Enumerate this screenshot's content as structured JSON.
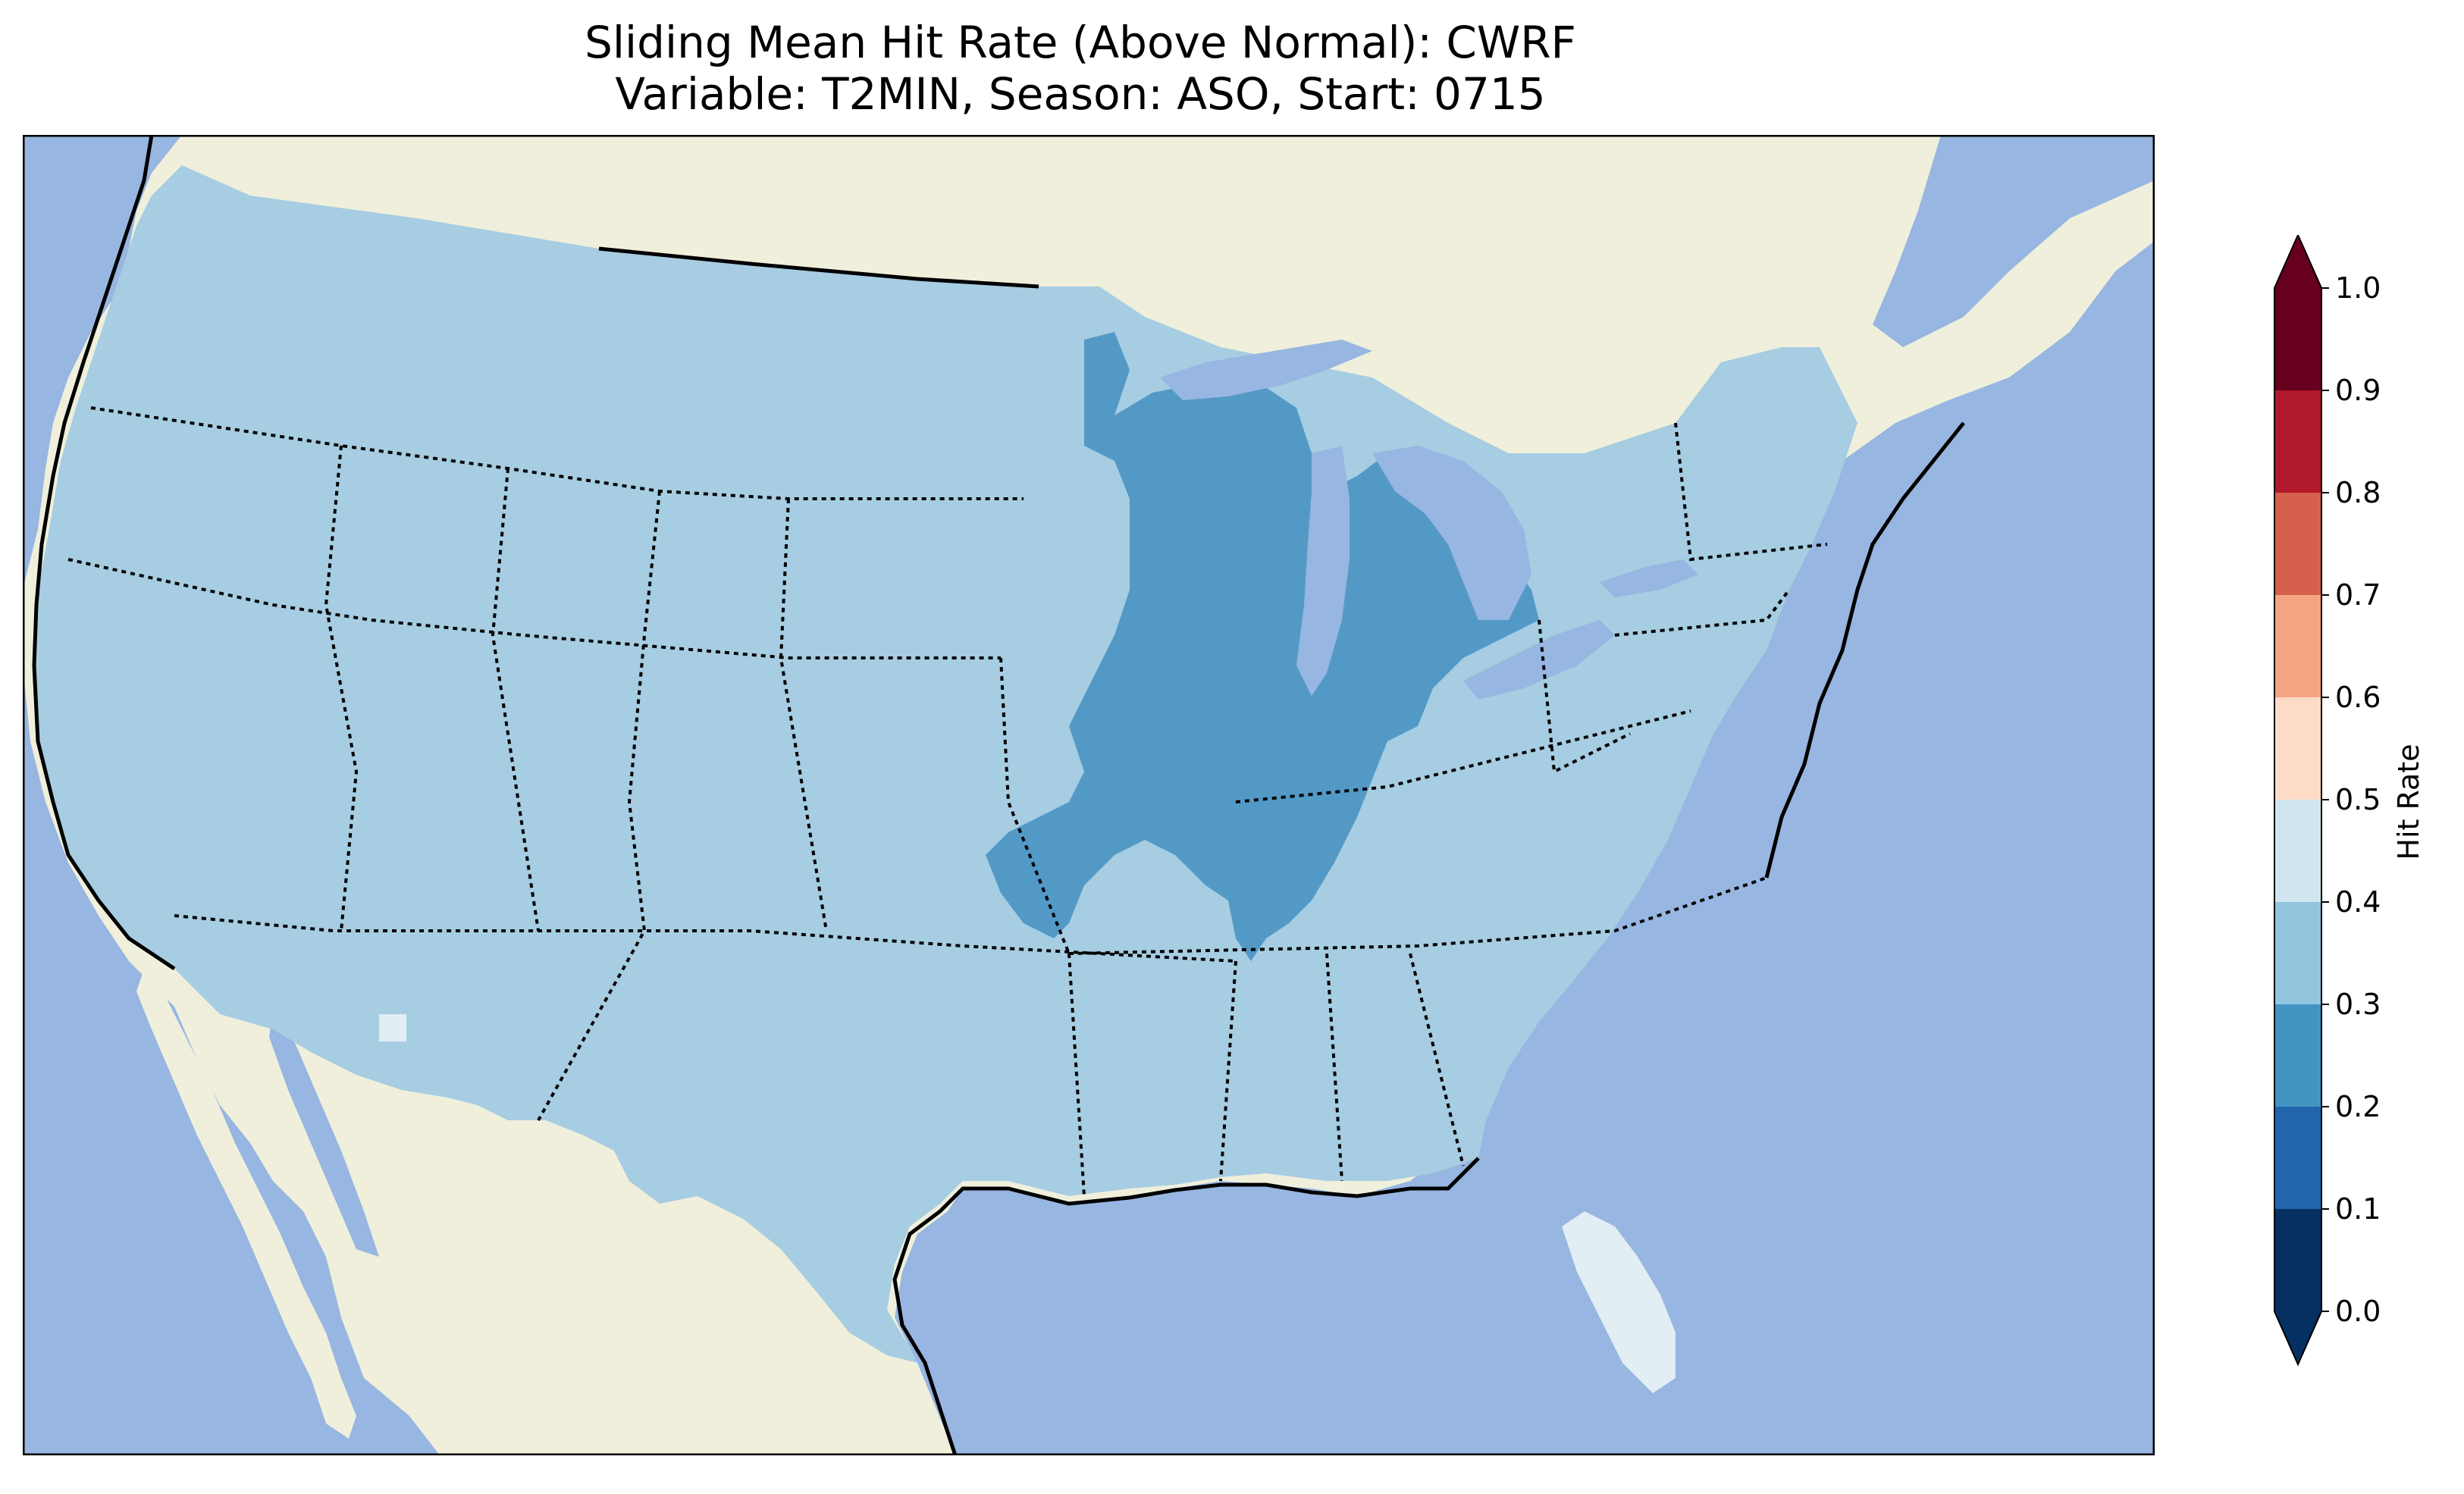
{
  "title": {
    "line1": "Sliding Mean Hit Rate (Above Normal): CWRF",
    "line2": "Variable: T2MIN, Season: ASO, Start: 0715"
  },
  "colorbar": {
    "label": "Hit Rate",
    "ticks": [
      "0.0",
      "0.1",
      "0.2",
      "0.3",
      "0.4",
      "0.5",
      "0.6",
      "0.7",
      "0.8",
      "0.9",
      "1.0"
    ],
    "bins": [
      {
        "range": "0.0-0.1",
        "color": "#053061"
      },
      {
        "range": "0.1-0.2",
        "color": "#2166ac"
      },
      {
        "range": "0.2-0.3",
        "color": "#4393c3"
      },
      {
        "range": "0.3-0.4",
        "color": "#92c5de"
      },
      {
        "range": "0.4-0.5",
        "color": "#d1e5f0"
      },
      {
        "range": "0.5-0.6",
        "color": "#fddbc7"
      },
      {
        "range": "0.6-0.7",
        "color": "#f4a582"
      },
      {
        "range": "0.7-0.8",
        "color": "#d6604d"
      },
      {
        "range": "0.8-0.9",
        "color": "#b2182b"
      },
      {
        "range": "0.9-1.0",
        "color": "#67001f"
      }
    ],
    "extend": "both"
  },
  "map_colors": {
    "ocean": "#97b6e1",
    "land": "#efefdc",
    "conus_fill": "#a6cde2",
    "low_region": "#5399c6",
    "florida": "#e2edf4"
  },
  "map_layers": {
    "coastlines": true,
    "state_borders": "dotted",
    "country_borders": "solid"
  }
}
